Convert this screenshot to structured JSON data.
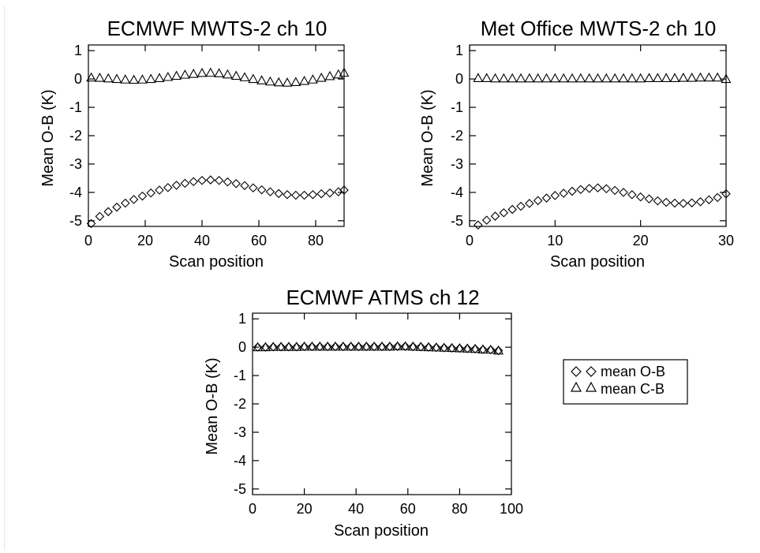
{
  "legend": {
    "items": [
      {
        "label": "mean O-B",
        "marker": "diamond"
      },
      {
        "label": "mean C-B",
        "marker": "triangle"
      }
    ]
  },
  "chart_data": [
    {
      "type": "scatter",
      "title": "ECMWF MWTS-2 ch 10",
      "xlabel": "Scan position",
      "ylabel": "Mean O-B (K)",
      "xlim": [
        0,
        90
      ],
      "ylim": [
        -5.2,
        1.2
      ],
      "xticks": [
        0,
        20,
        40,
        60,
        80
      ],
      "yticks": [
        1,
        0,
        -1,
        -2,
        -3,
        -4,
        -5
      ],
      "series": [
        {
          "name": "mean O-B",
          "marker": "diamond",
          "x": [
            1,
            4,
            7,
            10,
            13,
            16,
            19,
            22,
            25,
            28,
            31,
            34,
            37,
            40,
            43,
            46,
            49,
            52,
            55,
            58,
            61,
            64,
            67,
            70,
            73,
            76,
            79,
            82,
            85,
            88,
            90
          ],
          "y": [
            -5.1,
            -4.85,
            -4.68,
            -4.52,
            -4.38,
            -4.25,
            -4.13,
            -4.02,
            -3.92,
            -3.83,
            -3.75,
            -3.68,
            -3.62,
            -3.58,
            -3.56,
            -3.58,
            -3.63,
            -3.69,
            -3.76,
            -3.84,
            -3.91,
            -3.98,
            -4.04,
            -4.08,
            -4.1,
            -4.1,
            -4.08,
            -4.05,
            -4.02,
            -3.98,
            -3.92
          ]
        },
        {
          "name": "mean C-B",
          "marker": "triangle",
          "x": [
            1,
            4,
            7,
            10,
            13,
            16,
            19,
            22,
            25,
            28,
            31,
            34,
            37,
            40,
            43,
            46,
            49,
            52,
            55,
            58,
            61,
            64,
            67,
            70,
            73,
            76,
            79,
            82,
            85,
            88,
            90
          ],
          "y": [
            0.05,
            0.04,
            0.02,
            0.0,
            -0.02,
            -0.03,
            -0.02,
            0.0,
            0.03,
            0.07,
            0.11,
            0.15,
            0.18,
            0.21,
            0.22,
            0.2,
            0.16,
            0.11,
            0.06,
            0.0,
            -0.05,
            -0.09,
            -0.12,
            -0.13,
            -0.11,
            -0.07,
            -0.02,
            0.04,
            0.1,
            0.16,
            0.22
          ]
        }
      ]
    },
    {
      "type": "scatter",
      "title": "Met Office MWTS-2 ch 10",
      "xlabel": "Scan position",
      "ylabel": "Mean O-B (K)",
      "xlim": [
        0,
        30
      ],
      "ylim": [
        -5.2,
        1.2
      ],
      "xticks": [
        0,
        10,
        20,
        30
      ],
      "yticks": [
        1,
        0,
        -1,
        -2,
        -3,
        -4,
        -5
      ],
      "series": [
        {
          "name": "mean O-B",
          "marker": "diamond",
          "x": [
            1,
            2,
            3,
            4,
            5,
            6,
            7,
            8,
            9,
            10,
            11,
            12,
            13,
            14,
            15,
            16,
            17,
            18,
            19,
            20,
            21,
            22,
            23,
            24,
            25,
            26,
            27,
            28,
            29,
            30
          ],
          "y": [
            -5.15,
            -4.98,
            -4.84,
            -4.72,
            -4.6,
            -4.49,
            -4.39,
            -4.29,
            -4.2,
            -4.11,
            -4.03,
            -3.96,
            -3.9,
            -3.86,
            -3.84,
            -3.87,
            -3.93,
            -4.0,
            -4.08,
            -4.16,
            -4.23,
            -4.3,
            -4.35,
            -4.38,
            -4.39,
            -4.37,
            -4.33,
            -4.26,
            -4.18,
            -4.05
          ]
        },
        {
          "name": "mean C-B",
          "marker": "triangle",
          "x": [
            1,
            2,
            3,
            4,
            5,
            6,
            7,
            8,
            9,
            10,
            11,
            12,
            13,
            14,
            15,
            16,
            17,
            18,
            19,
            20,
            21,
            22,
            23,
            24,
            25,
            26,
            27,
            28,
            29,
            30
          ],
          "y": [
            0.03,
            0.03,
            0.02,
            0.02,
            0.02,
            0.02,
            0.02,
            0.02,
            0.02,
            0.02,
            0.02,
            0.02,
            0.02,
            0.02,
            0.02,
            0.02,
            0.02,
            0.02,
            0.02,
            0.02,
            0.03,
            0.03,
            0.03,
            0.03,
            0.04,
            0.04,
            0.05,
            0.05,
            0.05,
            0.0
          ]
        }
      ]
    },
    {
      "type": "scatter",
      "title": "ECMWF ATMS ch 12",
      "xlabel": "Scan position",
      "ylabel": "Mean O-B (K)",
      "xlim": [
        0,
        100
      ],
      "ylim": [
        -5.2,
        1.2
      ],
      "xticks": [
        0,
        20,
        40,
        60,
        80,
        100
      ],
      "yticks": [
        1,
        0,
        -1,
        -2,
        -3,
        -4,
        -5
      ],
      "series": [
        {
          "name": "mean O-B",
          "marker": "diamond",
          "x": [
            2,
            5,
            8,
            11,
            14,
            17,
            20,
            23,
            26,
            29,
            32,
            35,
            38,
            41,
            44,
            47,
            50,
            53,
            56,
            59,
            62,
            65,
            68,
            71,
            74,
            77,
            80,
            83,
            86,
            89,
            92,
            95
          ],
          "y": [
            0.0,
            0.0,
            0.01,
            0.01,
            0.01,
            0.01,
            0.02,
            0.02,
            0.02,
            0.02,
            0.02,
            0.02,
            0.02,
            0.02,
            0.02,
            0.02,
            0.02,
            0.02,
            0.03,
            0.03,
            0.02,
            0.01,
            0.0,
            -0.01,
            -0.02,
            -0.03,
            -0.04,
            -0.05,
            -0.06,
            -0.08,
            -0.09,
            -0.12
          ]
        },
        {
          "name": "mean C-B",
          "marker": "triangle",
          "x": [
            2,
            5,
            8,
            11,
            14,
            17,
            20,
            23,
            26,
            29,
            32,
            35,
            38,
            41,
            44,
            47,
            50,
            53,
            56,
            59,
            62,
            65,
            68,
            71,
            74,
            77,
            80,
            83,
            86,
            89,
            92,
            95
          ],
          "y": [
            0.0,
            0.0,
            0.01,
            0.01,
            0.01,
            0.01,
            0.02,
            0.02,
            0.02,
            0.02,
            0.02,
            0.02,
            0.02,
            0.02,
            0.02,
            0.02,
            0.02,
            0.02,
            0.03,
            0.03,
            0.02,
            0.01,
            0.0,
            -0.01,
            -0.02,
            -0.03,
            -0.04,
            -0.05,
            -0.06,
            -0.08,
            -0.09,
            -0.12
          ]
        }
      ]
    }
  ]
}
